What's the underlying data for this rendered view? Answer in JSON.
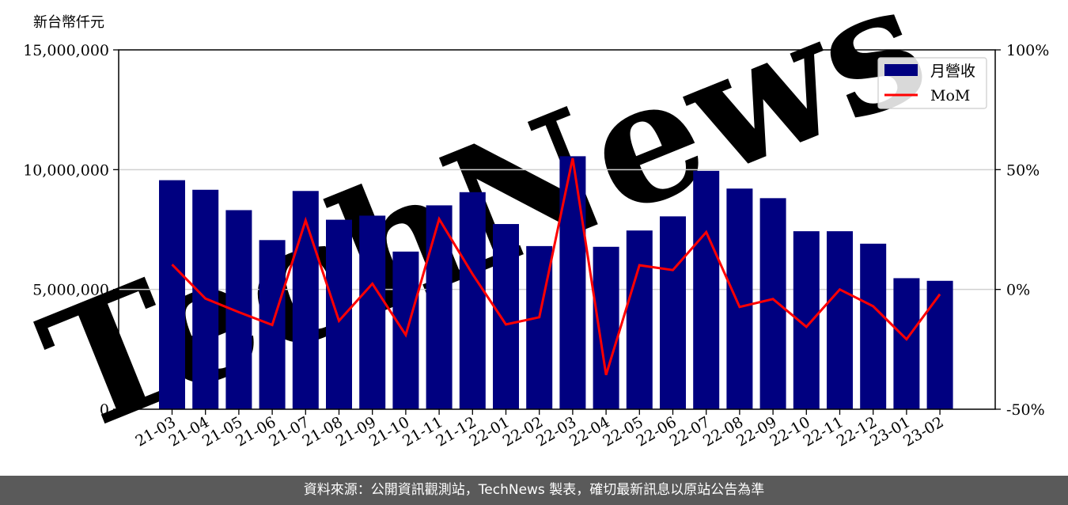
{
  "unit_label": "新台幣仟元",
  "footer_text": "資料來源：公開資訊觀測站，TechNews 製表，確切最新訊息以原站公告為準",
  "watermark_text": "TechNews",
  "colors": {
    "bar": "#000080",
    "line": "#ff0000",
    "grid": "#d0d0d0",
    "footer_bg": "#5a5a5a",
    "watermark": "#f6dede"
  },
  "chart_data": {
    "type": "bar",
    "categories": [
      "21-03",
      "21-04",
      "21-05",
      "21-06",
      "21-07",
      "21-08",
      "21-09",
      "21-10",
      "21-11",
      "21-12",
      "22-01",
      "22-02",
      "22-03",
      "22-04",
      "22-05",
      "22-06",
      "22-07",
      "22-08",
      "22-09",
      "22-10",
      "22-11",
      "22-12",
      "23-01",
      "23-02"
    ],
    "series": [
      {
        "name": "月營收",
        "axis": "left",
        "kind": "bar",
        "values": [
          9560000,
          9160000,
          8310000,
          7060000,
          9110000,
          7910000,
          8080000,
          6580000,
          8510000,
          9060000,
          7730000,
          6810000,
          10560000,
          6780000,
          7460000,
          8050000,
          9950000,
          9210000,
          8810000,
          7430000,
          7430000,
          6910000,
          5470000,
          5360000
        ]
      },
      {
        "name": "MoM",
        "axis": "right",
        "kind": "line",
        "values": [
          10.4,
          -3.8,
          -9.5,
          -14.8,
          28.8,
          -13.1,
          2.4,
          -19.0,
          29.4,
          6.4,
          -14.6,
          -11.6,
          54.8,
          -35.7,
          10.1,
          8.1,
          23.9,
          -7.3,
          -4.0,
          -15.6,
          0.0,
          -7.0,
          -20.8,
          -2.0
        ]
      }
    ],
    "left_axis": {
      "lim": [
        0,
        15000000
      ],
      "ticks": [
        0,
        5000000,
        10000000,
        15000000
      ],
      "tick_labels": [
        "0",
        "5,000,000",
        "10,000,000",
        "15,000,000"
      ]
    },
    "right_axis": {
      "lim": [
        -50,
        100
      ],
      "ticks": [
        -50,
        0,
        50,
        100
      ],
      "tick_labels": [
        "-50%",
        "0%",
        "50%",
        "100%"
      ]
    },
    "legend": {
      "placement": "top-right",
      "entries": [
        "月營收",
        "MoM"
      ]
    },
    "grid": "horizontal"
  }
}
